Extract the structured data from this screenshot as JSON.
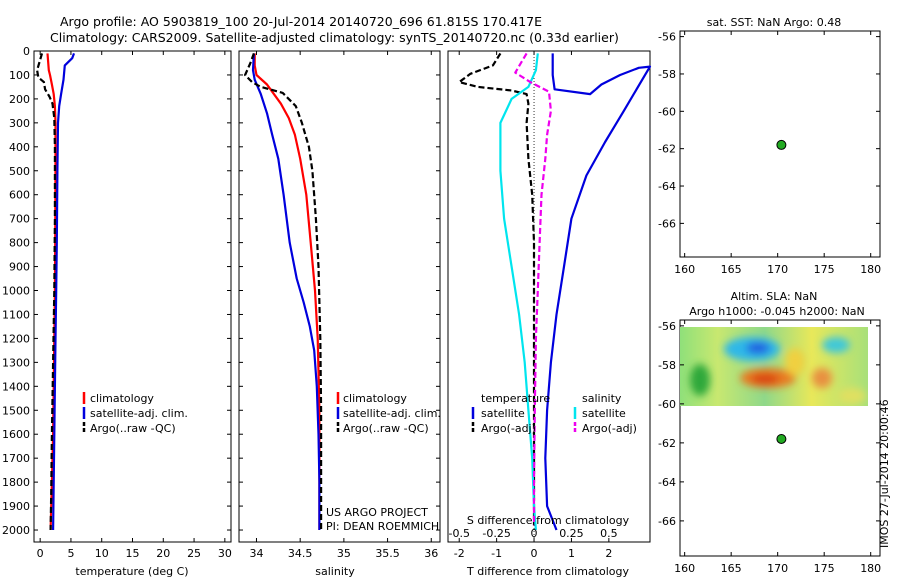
{
  "figure": {
    "title_line1": "Argo profile: AO 5903819_100 20-Jul-2014 20140720_696 61.815S 170.417E",
    "title_line2": "Climatology: CARS2009. Satellite-adjusted climatology: synTS_20140720.nc (0.33d earlier)",
    "side_label": "IMOS 27-Jul-2014 20:00:46",
    "project_line1": "US ARGO PROJECT",
    "project_line2": "PI: DEAN ROEMMICH"
  },
  "colors": {
    "climatology": "#ff0000",
    "satellite": "#0000dd",
    "argo": "#000000",
    "salinity_satellite": "#00e5ee",
    "salinity_argo": "#ee00ee",
    "marker": "#22aa22"
  },
  "chart_data": [
    {
      "type": "line",
      "id": "temperature",
      "xlabel": "temperature (deg C)",
      "xlim": [
        -1,
        31
      ],
      "xticks": [
        0,
        5,
        10,
        15,
        20,
        25,
        30
      ],
      "ylim": [
        2050,
        0
      ],
      "yticks": [
        0,
        100,
        200,
        300,
        400,
        500,
        600,
        700,
        800,
        900,
        1000,
        1100,
        1200,
        1300,
        1400,
        1500,
        1600,
        1700,
        1800,
        1900,
        2000
      ],
      "legend": [
        "climatology",
        "satellite-adj. clim.",
        "Argo(..raw -QC)"
      ],
      "series": [
        {
          "name": "climatology",
          "style": "solid",
          "points": [
            [
              1.2,
              10
            ],
            [
              1.4,
              80
            ],
            [
              1.6,
              100
            ],
            [
              1.9,
              140
            ],
            [
              2.2,
              180
            ],
            [
              2.4,
              230
            ],
            [
              2.5,
              300
            ],
            [
              2.5,
              500
            ],
            [
              2.45,
              800
            ],
            [
              2.4,
              1000
            ],
            [
              2.3,
              1200
            ],
            [
              2.2,
              1400
            ],
            [
              2.1,
              1600
            ],
            [
              1.9,
              1800
            ],
            [
              1.7,
              2000
            ]
          ]
        },
        {
          "name": "satellite-adj. clim.",
          "style": "solid",
          "points": [
            [
              5.5,
              10
            ],
            [
              5.2,
              30
            ],
            [
              4.0,
              60
            ],
            [
              3.8,
              120
            ],
            [
              3.4,
              180
            ],
            [
              3.1,
              230
            ],
            [
              2.9,
              300
            ],
            [
              2.8,
              500
            ],
            [
              2.7,
              800
            ],
            [
              2.6,
              1000
            ],
            [
              2.5,
              1200
            ],
            [
              2.4,
              1400
            ],
            [
              2.3,
              1600
            ],
            [
              2.2,
              1800
            ],
            [
              2.1,
              2000
            ]
          ]
        },
        {
          "name": "Argo(..raw -QC)",
          "style": "dashed",
          "points": [
            [
              0.3,
              10
            ],
            [
              -0.5,
              80
            ],
            [
              -0.3,
              110
            ],
            [
              0.6,
              130
            ],
            [
              0.8,
              160
            ],
            [
              1.5,
              190
            ],
            [
              2.0,
              220
            ],
            [
              2.3,
              280
            ],
            [
              2.4,
              400
            ],
            [
              2.4,
              700
            ],
            [
              2.3,
              1000
            ],
            [
              2.1,
              1300
            ],
            [
              1.9,
              1600
            ],
            [
              1.8,
              1850
            ],
            [
              1.7,
              2000
            ]
          ]
        }
      ]
    },
    {
      "type": "line",
      "id": "salinity",
      "xlabel": "salinity",
      "xlim": [
        33.8,
        36.1
      ],
      "xticks": [
        34,
        34.5,
        35,
        35.5,
        36
      ],
      "ylim": [
        2050,
        0
      ],
      "legend": [
        "climatology",
        "satellite-adj. clim.",
        "Argo(..raw -QC)"
      ],
      "series": [
        {
          "name": "climatology",
          "style": "solid",
          "points": [
            [
              33.98,
              10
            ],
            [
              33.98,
              60
            ],
            [
              34.0,
              100
            ],
            [
              34.12,
              140
            ],
            [
              34.18,
              170
            ],
            [
              34.28,
              220
            ],
            [
              34.37,
              280
            ],
            [
              34.44,
              350
            ],
            [
              34.5,
              450
            ],
            [
              34.57,
              600
            ],
            [
              34.62,
              800
            ],
            [
              34.67,
              1000
            ],
            [
              34.7,
              1200
            ],
            [
              34.72,
              1500
            ],
            [
              34.72,
              1800
            ],
            [
              34.72,
              2000
            ]
          ]
        },
        {
          "name": "satellite-adj. clim.",
          "style": "solid",
          "points": [
            [
              33.97,
              10
            ],
            [
              33.96,
              80
            ],
            [
              33.98,
              120
            ],
            [
              34.05,
              180
            ],
            [
              34.12,
              260
            ],
            [
              34.18,
              350
            ],
            [
              34.25,
              450
            ],
            [
              34.31,
              600
            ],
            [
              34.38,
              800
            ],
            [
              34.46,
              950
            ],
            [
              34.54,
              1050
            ],
            [
              34.61,
              1150
            ],
            [
              34.66,
              1250
            ],
            [
              34.69,
              1400
            ],
            [
              34.71,
              1600
            ],
            [
              34.72,
              1800
            ],
            [
              34.72,
              2000
            ]
          ]
        },
        {
          "name": "Argo(..raw -QC)",
          "style": "dashed",
          "points": [
            [
              33.97,
              10
            ],
            [
              33.93,
              50
            ],
            [
              33.87,
              100
            ],
            [
              33.95,
              130
            ],
            [
              34.05,
              150
            ],
            [
              34.3,
              175
            ],
            [
              34.45,
              230
            ],
            [
              34.52,
              300
            ],
            [
              34.6,
              400
            ],
            [
              34.64,
              500
            ],
            [
              34.68,
              700
            ],
            [
              34.71,
              900
            ],
            [
              34.73,
              1200
            ],
            [
              34.74,
              1500
            ],
            [
              34.74,
              1800
            ],
            [
              34.74,
              2000
            ]
          ]
        }
      ]
    },
    {
      "type": "line",
      "id": "difference",
      "xlabel": "T difference from climatology",
      "xlabel_secondary": "S difference from climatology",
      "xlim": [
        -2.3,
        3.1
      ],
      "xticks": [
        -2,
        -1,
        0,
        1,
        2
      ],
      "xticks_secondary": [
        "-0.5",
        "-0.25",
        "0",
        "0.25",
        "0.5"
      ],
      "xticks_secondary_at": [
        -2,
        -1,
        0,
        1,
        2
      ],
      "ylim": [
        2050,
        0
      ],
      "legend_left_title": "temperature",
      "legend_right_title": "salinity",
      "legend": [
        "satellite",
        "Argo(-adj)",
        "satellite",
        "Argo(-adj)"
      ],
      "series": [
        {
          "name": "satellite",
          "group": "temperature",
          "style": "solid",
          "points": [
            [
              0.5,
              10
            ],
            [
              0.5,
              100
            ],
            [
              0.55,
              160
            ],
            [
              1.5,
              180
            ],
            [
              1.8,
              140
            ],
            [
              2.3,
              100
            ],
            [
              2.8,
              70
            ],
            [
              3.1,
              65
            ],
            [
              2.4,
              250
            ],
            [
              1.9,
              380
            ],
            [
              1.4,
              520
            ],
            [
              1.0,
              700
            ],
            [
              0.8,
              900
            ],
            [
              0.6,
              1100
            ],
            [
              0.45,
              1300
            ],
            [
              0.35,
              1500
            ],
            [
              0.3,
              1700
            ],
            [
              0.35,
              1900
            ],
            [
              0.6,
              2000
            ]
          ]
        },
        {
          "name": "Argo(-adj)",
          "group": "temperature",
          "style": "dashed",
          "points": [
            [
              -0.9,
              10
            ],
            [
              -1.1,
              60
            ],
            [
              -1.7,
              95
            ],
            [
              -2.0,
              130
            ],
            [
              -1.5,
              150
            ],
            [
              -0.6,
              165
            ],
            [
              -0.2,
              180
            ],
            [
              -0.15,
              220
            ],
            [
              -0.2,
              300
            ],
            [
              -0.15,
              450
            ],
            [
              -0.05,
              600
            ],
            [
              0.0,
              800
            ],
            [
              0.0,
              1200
            ],
            [
              0.0,
              1800
            ],
            [
              0.0,
              1980
            ]
          ]
        },
        {
          "name": "satellite",
          "group": "salinity",
          "style": "solid",
          "points": [
            [
              0.1,
              10
            ],
            [
              0.05,
              80
            ],
            [
              -0.15,
              150
            ],
            [
              -0.6,
              200
            ],
            [
              -0.9,
              300
            ],
            [
              -0.9,
              500
            ],
            [
              -0.8,
              700
            ],
            [
              -0.6,
              900
            ],
            [
              -0.4,
              1100
            ],
            [
              -0.25,
              1300
            ],
            [
              -0.15,
              1500
            ],
            [
              -0.05,
              1700
            ],
            [
              0.0,
              1900
            ],
            [
              0.05,
              2000
            ]
          ]
        },
        {
          "name": "Argo(-adj)",
          "group": "salinity",
          "style": "dashed",
          "points": [
            [
              -0.2,
              10
            ],
            [
              -0.35,
              50
            ],
            [
              -0.5,
              90
            ],
            [
              -0.1,
              130
            ],
            [
              0.4,
              170
            ],
            [
              0.45,
              250
            ],
            [
              0.35,
              350
            ],
            [
              0.3,
              450
            ],
            [
              0.2,
              600
            ],
            [
              0.15,
              800
            ],
            [
              0.1,
              1000
            ],
            [
              0.05,
              1200
            ],
            [
              0.02,
              1500
            ],
            [
              0.0,
              1800
            ],
            [
              0.0,
              1980
            ]
          ]
        }
      ]
    },
    {
      "type": "scatter",
      "id": "sst-map",
      "title": "sat. SST: NaN Argo: 0.48",
      "xlim": [
        159.5,
        181
      ],
      "ylim": [
        -67.8,
        -55.7
      ],
      "xticks": [
        160,
        165,
        170,
        175,
        180
      ],
      "yticks": [
        -56,
        -58,
        -60,
        -62,
        -64,
        -66
      ],
      "points": [
        [
          170.4,
          -61.8
        ]
      ]
    },
    {
      "type": "heatmap",
      "id": "sla-map",
      "title_line1": "Altim. SLA: NaN",
      "title_line2": "Argo h1000: -0.045 h2000: NaN",
      "xlim": [
        159.5,
        181
      ],
      "ylim": [
        -67.8,
        -55.7
      ],
      "xticks": [
        160,
        165,
        170,
        175,
        180
      ],
      "yticks": [
        -56,
        -58,
        -60,
        -62,
        -64,
        -66
      ],
      "points": [
        [
          170.4,
          -61.8
        ]
      ]
    }
  ]
}
